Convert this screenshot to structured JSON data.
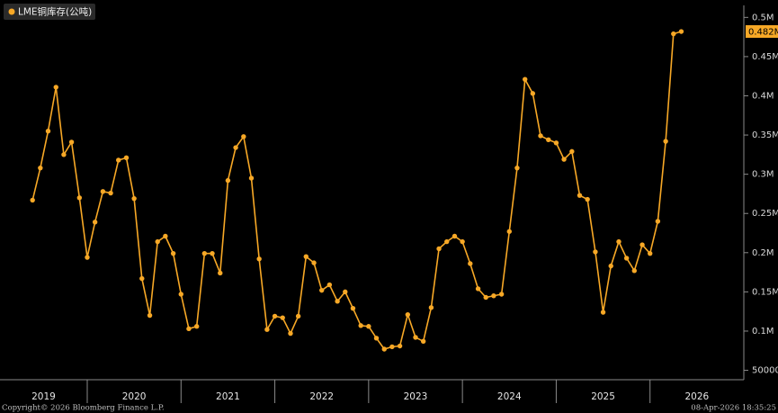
{
  "chart_data": {
    "type": "line",
    "series": [
      {
        "name": "LME铜库存(公吨)",
        "color": "#f7a826",
        "x": [
          2019.417,
          2019.5,
          2019.583,
          2019.667,
          2019.75,
          2019.833,
          2019.917,
          2020.0,
          2020.083,
          2020.167,
          2020.25,
          2020.333,
          2020.417,
          2020.5,
          2020.583,
          2020.667,
          2020.75,
          2020.833,
          2020.917,
          2021.0,
          2021.083,
          2021.167,
          2021.25,
          2021.333,
          2021.417,
          2021.5,
          2021.583,
          2021.667,
          2021.75,
          2021.833,
          2021.917,
          2022.0,
          2022.083,
          2022.167,
          2022.25,
          2022.333,
          2022.417,
          2022.5,
          2022.583,
          2022.667,
          2022.75,
          2022.833,
          2022.917,
          2023.0,
          2023.083,
          2023.167,
          2023.25,
          2023.333,
          2023.417,
          2023.5,
          2023.583,
          2023.667,
          2023.75,
          2023.833,
          2023.917,
          2024.0,
          2024.083,
          2024.167,
          2024.25,
          2024.333,
          2024.417,
          2024.5,
          2024.583,
          2024.667,
          2024.75,
          2024.833,
          2024.917,
          2025.0,
          2025.083,
          2025.167,
          2025.25,
          2025.333,
          2025.417,
          2025.5,
          2025.583,
          2025.667,
          2025.75,
          2025.833,
          2025.917,
          2026.0,
          2026.083,
          2026.167,
          2026.25,
          2026.333
        ],
        "values": [
          267000,
          308000,
          355000,
          411000,
          325000,
          341000,
          270000,
          194000,
          239000,
          278000,
          276000,
          318000,
          321000,
          269000,
          167000,
          120000,
          214000,
          221000,
          199000,
          147000,
          103000,
          106000,
          199000,
          199000,
          174000,
          292000,
          334000,
          348000,
          295000,
          192000,
          102000,
          119000,
          117000,
          97000,
          119000,
          195000,
          187000,
          152000,
          159000,
          138000,
          150000,
          129000,
          107000,
          106000,
          91000,
          77000,
          80000,
          81000,
          121000,
          92000,
          87000,
          130000,
          205000,
          214000,
          221000,
          214000,
          186000,
          154000,
          143000,
          145000,
          147000,
          227000,
          308000,
          421000,
          403000,
          349000,
          344000,
          340000,
          319000,
          329000,
          273000,
          268000,
          201000,
          124000,
          183000,
          214000,
          193000,
          177000,
          210000,
          199000,
          240000,
          342000,
          479000,
          482000
        ],
        "last_value_label": "0.482M"
      }
    ],
    "xlim": [
      2019.07,
      2027.0
    ],
    "xticks": [
      2020,
      2021,
      2022,
      2023,
      2024,
      2025,
      2026
    ],
    "year_labels": [
      "2019",
      "2020",
      "2021",
      "2022",
      "2023",
      "2024",
      "2025",
      "2026"
    ],
    "ylim": [
      38000,
      513000
    ],
    "yticks": [
      {
        "value": 500000,
        "label": "0.5M"
      },
      {
        "value": 450000,
        "label": "0.45M"
      },
      {
        "value": 400000,
        "label": "0.4M"
      },
      {
        "value": 350000,
        "label": "0.35M"
      },
      {
        "value": 300000,
        "label": "0.3M"
      },
      {
        "value": 250000,
        "label": "0.25M"
      },
      {
        "value": 200000,
        "label": "0.2M"
      },
      {
        "value": 150000,
        "label": "0.15M"
      },
      {
        "value": 100000,
        "label": "0.1M"
      },
      50000
    ],
    "grid": false,
    "legend": "top-left",
    "source": "Copyright© 2026 Bloomberg Finance L.P.",
    "timestamp": "08-Apr-2026 18:35:25"
  }
}
